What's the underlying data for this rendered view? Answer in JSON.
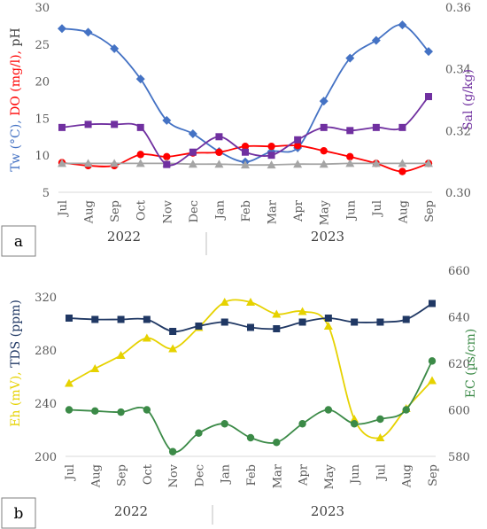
{
  "chart_data": [
    {
      "type": "line",
      "panel_label": "a",
      "categories": [
        "Jul",
        "Aug",
        "Sep",
        "Oct",
        "Nov",
        "Dec",
        "Jan",
        "Feb",
        "Mar",
        "Apr",
        "May",
        "Jun",
        "Jul",
        "Aug",
        "Sep"
      ],
      "year_labels": [
        "2022",
        "2023"
      ],
      "left_axis": {
        "ylim": [
          5,
          30
        ],
        "ticks": [
          "5",
          "10",
          "15",
          "20",
          "25",
          "30"
        ],
        "title_parts": [
          {
            "text": "Tw (°C), ",
            "color": "#4472c4"
          },
          {
            "text": "DO (mg/l), ",
            "color": "#ff0000"
          },
          {
            "text": "pH",
            "color": "#404040"
          }
        ]
      },
      "right_axis": {
        "ylim": [
          0.3,
          0.36
        ],
        "ticks": [
          "0.30",
          "0.32",
          "0.34",
          "0.36"
        ],
        "title_parts": [
          {
            "text": "Sal (g/kg)",
            "color": "#7030a0"
          }
        ]
      },
      "series": [
        {
          "key": "tw",
          "axis": "left",
          "color": "#4472c4",
          "marker": "diamond",
          "values": [
            27.1,
            26.6,
            24.4,
            20.3,
            14.7,
            12.9,
            10.5,
            9.1,
            10.5,
            11.0,
            17.3,
            23.1,
            25.5,
            27.6,
            24.0
          ]
        },
        {
          "key": "do",
          "axis": "left",
          "color": "#ff0000",
          "marker": "circle",
          "values": [
            9.0,
            8.6,
            8.6,
            10.1,
            9.8,
            10.3,
            10.4,
            11.2,
            11.2,
            11.3,
            10.6,
            9.8,
            8.9,
            7.8,
            8.9
          ]
        },
        {
          "key": "ph",
          "axis": "left",
          "color": "#a5a5a5",
          "marker": "triangle",
          "values": [
            8.9,
            8.9,
            8.9,
            8.9,
            8.9,
            8.8,
            8.8,
            8.7,
            8.7,
            8.8,
            8.8,
            8.9,
            8.9,
            8.9,
            8.9
          ]
        },
        {
          "key": "sal",
          "axis": "right",
          "color": "#7030a0",
          "marker": "square",
          "values": [
            0.321,
            0.322,
            0.322,
            0.321,
            0.309,
            0.313,
            0.318,
            0.313,
            0.312,
            0.317,
            0.321,
            0.32,
            0.321,
            0.321,
            0.331
          ]
        }
      ]
    },
    {
      "type": "line",
      "panel_label": "b",
      "categories": [
        "Jul",
        "Aug",
        "Sep",
        "Oct",
        "Nov",
        "Dec",
        "Jan",
        "Feb",
        "Mar",
        "Apr",
        "May",
        "Jun",
        "Jul",
        "Aug",
        "Sep"
      ],
      "year_labels": [
        "2022",
        "2023"
      ],
      "left_axis": {
        "ylim": [
          200,
          340
        ],
        "ticks": [
          "200",
          "240",
          "280",
          "320"
        ],
        "title_parts": [
          {
            "text": "Eh (mV), ",
            "color": "#e6d200"
          },
          {
            "text": "TDS (ppm)",
            "color": "#203864"
          }
        ]
      },
      "right_axis": {
        "ylim": [
          580,
          660
        ],
        "ticks": [
          "580",
          "600",
          "620",
          "640",
          "660"
        ],
        "title_parts": [
          {
            "text": "EC (µs/cm)",
            "color": "#3b8a47"
          }
        ]
      },
      "series": [
        {
          "key": "eh",
          "axis": "left",
          "color": "#e6d200",
          "marker": "triangle",
          "values": [
            255,
            266,
            276,
            289,
            281,
            297,
            316,
            316,
            307,
            309,
            298,
            228,
            214,
            236,
            257
          ]
        },
        {
          "key": "tds",
          "axis": "left",
          "color": "#203864",
          "marker": "square",
          "values": [
            304,
            303,
            303,
            303,
            294,
            298,
            301,
            297,
            296,
            301,
            304,
            301,
            301,
            303,
            315
          ]
        },
        {
          "key": "ec",
          "axis": "right",
          "color": "#3b8a47",
          "marker": "circle",
          "values": [
            600,
            599.5,
            599,
            600,
            582,
            590,
            594,
            588,
            586,
            594,
            600,
            594,
            596,
            600,
            621
          ]
        }
      ]
    }
  ]
}
